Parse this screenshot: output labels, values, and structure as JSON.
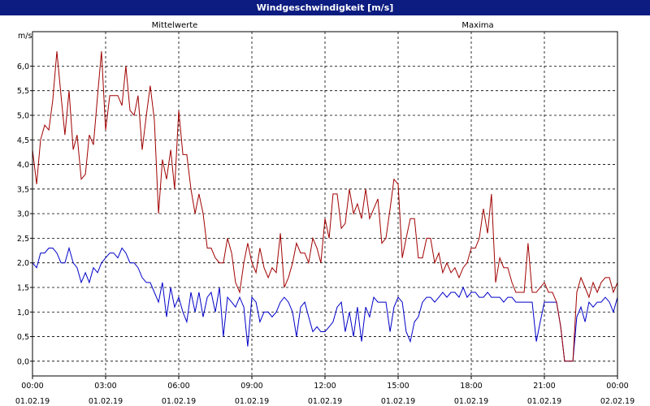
{
  "window": {
    "title": "Windgeschwindigkeit [m/s]"
  },
  "chart_data": {
    "type": "line",
    "title": "Windgeschwindigkeit [m/s]",
    "ylabel": "m/s",
    "ylim": [
      -0.3,
      6.7
    ],
    "yticks": [
      "0,0",
      "0,5",
      "1,0",
      "1,5",
      "2,0",
      "2,5",
      "3,0",
      "3,5",
      "4,0",
      "4,5",
      "5,0",
      "5,5",
      "6,0"
    ],
    "xlim_hours": [
      0,
      24
    ],
    "xticks": [
      {
        "time": "00:00",
        "date": "01.02.19"
      },
      {
        "time": "03:00",
        "date": "01.02.19"
      },
      {
        "time": "06:00",
        "date": "01.02.19"
      },
      {
        "time": "09:00",
        "date": "01.02.19"
      },
      {
        "time": "12:00",
        "date": "01.02.19"
      },
      {
        "time": "15:00",
        "date": "01.02.19"
      },
      {
        "time": "18:00",
        "date": "01.02.19"
      },
      {
        "time": "21:00",
        "date": "01.02.19"
      },
      {
        "time": "00:00",
        "date": "02.02.19"
      }
    ],
    "grid": true,
    "legend": "top",
    "series": [
      {
        "name": "Mittelwerte",
        "color": "#0000c8",
        "values": [
          [
            0.0,
            2.0
          ],
          [
            0.17,
            1.9
          ],
          [
            0.33,
            2.2
          ],
          [
            0.5,
            2.2
          ],
          [
            0.67,
            2.3
          ],
          [
            0.83,
            2.3
          ],
          [
            1.0,
            2.2
          ],
          [
            1.17,
            2.0
          ],
          [
            1.33,
            2.0
          ],
          [
            1.5,
            2.3
          ],
          [
            1.67,
            2.0
          ],
          [
            1.83,
            1.9
          ],
          [
            2.0,
            1.6
          ],
          [
            2.17,
            1.8
          ],
          [
            2.33,
            1.6
          ],
          [
            2.5,
            1.9
          ],
          [
            2.67,
            1.8
          ],
          [
            2.83,
            2.0
          ],
          [
            3.0,
            2.1
          ],
          [
            3.17,
            2.2
          ],
          [
            3.33,
            2.2
          ],
          [
            3.5,
            2.1
          ],
          [
            3.67,
            2.3
          ],
          [
            3.83,
            2.2
          ],
          [
            4.0,
            2.0
          ],
          [
            4.17,
            2.0
          ],
          [
            4.33,
            1.9
          ],
          [
            4.5,
            1.7
          ],
          [
            4.67,
            1.6
          ],
          [
            4.83,
            1.6
          ],
          [
            5.0,
            1.4
          ],
          [
            5.17,
            1.2
          ],
          [
            5.33,
            1.6
          ],
          [
            5.5,
            0.9
          ],
          [
            5.67,
            1.5
          ],
          [
            5.83,
            1.1
          ],
          [
            6.0,
            1.3
          ],
          [
            6.17,
            1.0
          ],
          [
            6.33,
            0.8
          ],
          [
            6.5,
            1.4
          ],
          [
            6.67,
            1.0
          ],
          [
            6.83,
            1.4
          ],
          [
            7.0,
            0.9
          ],
          [
            7.17,
            1.3
          ],
          [
            7.33,
            1.4
          ],
          [
            7.5,
            1.0
          ],
          [
            7.67,
            1.5
          ],
          [
            7.83,
            0.5
          ],
          [
            8.0,
            1.3
          ],
          [
            8.17,
            1.2
          ],
          [
            8.33,
            1.1
          ],
          [
            8.5,
            1.3
          ],
          [
            8.67,
            1.1
          ],
          [
            8.83,
            0.3
          ],
          [
            9.0,
            1.3
          ],
          [
            9.17,
            1.2
          ],
          [
            9.33,
            0.8
          ],
          [
            9.5,
            1.0
          ],
          [
            9.67,
            1.0
          ],
          [
            9.83,
            0.9
          ],
          [
            10.0,
            1.0
          ],
          [
            10.17,
            1.2
          ],
          [
            10.33,
            1.3
          ],
          [
            10.5,
            1.2
          ],
          [
            10.67,
            1.0
          ],
          [
            10.83,
            0.5
          ],
          [
            11.0,
            1.1
          ],
          [
            11.17,
            1.2
          ],
          [
            11.33,
            0.9
          ],
          [
            11.5,
            0.6
          ],
          [
            11.67,
            0.7
          ],
          [
            11.83,
            0.6
          ],
          [
            12.0,
            0.6
          ],
          [
            12.17,
            0.7
          ],
          [
            12.33,
            0.8
          ],
          [
            12.5,
            1.1
          ],
          [
            12.67,
            1.2
          ],
          [
            12.83,
            0.6
          ],
          [
            13.0,
            1.0
          ],
          [
            13.17,
            0.5
          ],
          [
            13.33,
            1.1
          ],
          [
            13.5,
            0.4
          ],
          [
            13.67,
            1.1
          ],
          [
            13.83,
            0.9
          ],
          [
            14.0,
            1.3
          ],
          [
            14.17,
            1.2
          ],
          [
            14.33,
            1.2
          ],
          [
            14.5,
            1.2
          ],
          [
            14.67,
            0.6
          ],
          [
            14.83,
            1.1
          ],
          [
            15.0,
            1.3
          ],
          [
            15.17,
            1.2
          ],
          [
            15.33,
            0.6
          ],
          [
            15.5,
            0.4
          ],
          [
            15.67,
            0.8
          ],
          [
            15.83,
            0.9
          ],
          [
            16.0,
            1.2
          ],
          [
            16.17,
            1.3
          ],
          [
            16.33,
            1.3
          ],
          [
            16.5,
            1.2
          ],
          [
            16.67,
            1.3
          ],
          [
            16.83,
            1.4
          ],
          [
            17.0,
            1.3
          ],
          [
            17.17,
            1.4
          ],
          [
            17.33,
            1.4
          ],
          [
            17.5,
            1.3
          ],
          [
            17.67,
            1.5
          ],
          [
            17.83,
            1.3
          ],
          [
            18.0,
            1.4
          ],
          [
            18.17,
            1.4
          ],
          [
            18.33,
            1.3
          ],
          [
            18.5,
            1.3
          ],
          [
            18.67,
            1.4
          ],
          [
            18.83,
            1.3
          ],
          [
            19.0,
            1.3
          ],
          [
            19.17,
            1.3
          ],
          [
            19.33,
            1.2
          ],
          [
            19.5,
            1.3
          ],
          [
            19.67,
            1.3
          ],
          [
            19.83,
            1.2
          ],
          [
            20.0,
            1.2
          ],
          [
            20.17,
            1.2
          ],
          [
            20.33,
            1.2
          ],
          [
            20.5,
            1.2
          ],
          [
            20.67,
            0.4
          ],
          [
            20.83,
            0.8
          ],
          [
            21.0,
            1.2
          ],
          [
            21.17,
            1.2
          ],
          [
            21.33,
            1.2
          ],
          [
            21.5,
            1.2
          ],
          [
            21.67,
            0.7
          ],
          [
            21.83,
            0.0
          ],
          [
            22.0,
            0.0
          ],
          [
            22.17,
            0.0
          ],
          [
            22.33,
            0.9
          ],
          [
            22.5,
            1.1
          ],
          [
            22.67,
            0.8
          ],
          [
            22.83,
            1.2
          ],
          [
            23.0,
            1.1
          ],
          [
            23.17,
            1.2
          ],
          [
            23.33,
            1.2
          ],
          [
            23.5,
            1.3
          ],
          [
            23.67,
            1.2
          ],
          [
            23.83,
            1.0
          ],
          [
            24.0,
            1.3
          ]
        ]
      },
      {
        "name": "Maxima",
        "color": "#a00000",
        "values": [
          [
            0.0,
            4.3
          ],
          [
            0.17,
            3.6
          ],
          [
            0.33,
            4.5
          ],
          [
            0.5,
            4.8
          ],
          [
            0.67,
            4.7
          ],
          [
            0.83,
            5.3
          ],
          [
            1.0,
            6.3
          ],
          [
            1.17,
            5.4
          ],
          [
            1.33,
            4.6
          ],
          [
            1.5,
            5.5
          ],
          [
            1.67,
            4.3
          ],
          [
            1.83,
            4.6
          ],
          [
            2.0,
            3.7
          ],
          [
            2.17,
            3.8
          ],
          [
            2.33,
            4.6
          ],
          [
            2.5,
            4.4
          ],
          [
            2.67,
            5.4
          ],
          [
            2.83,
            6.3
          ],
          [
            3.0,
            4.7
          ],
          [
            3.17,
            5.4
          ],
          [
            3.33,
            5.4
          ],
          [
            3.5,
            5.4
          ],
          [
            3.67,
            5.2
          ],
          [
            3.83,
            6.0
          ],
          [
            4.0,
            5.1
          ],
          [
            4.17,
            5.0
          ],
          [
            4.33,
            5.4
          ],
          [
            4.5,
            4.3
          ],
          [
            4.67,
            5.0
          ],
          [
            4.83,
            5.6
          ],
          [
            5.0,
            4.9
          ],
          [
            5.17,
            3.0
          ],
          [
            5.33,
            4.1
          ],
          [
            5.5,
            3.7
          ],
          [
            5.67,
            4.3
          ],
          [
            5.83,
            3.5
          ],
          [
            6.0,
            5.1
          ],
          [
            6.17,
            4.2
          ],
          [
            6.33,
            4.2
          ],
          [
            6.5,
            3.5
          ],
          [
            6.67,
            3.0
          ],
          [
            6.83,
            3.4
          ],
          [
            7.0,
            3.0
          ],
          [
            7.17,
            2.3
          ],
          [
            7.33,
            2.3
          ],
          [
            7.5,
            2.1
          ],
          [
            7.67,
            2.0
          ],
          [
            7.83,
            2.0
          ],
          [
            8.0,
            2.5
          ],
          [
            8.17,
            2.2
          ],
          [
            8.33,
            1.6
          ],
          [
            8.5,
            1.4
          ],
          [
            8.67,
            2.0
          ],
          [
            8.83,
            2.4
          ],
          [
            9.0,
            2.0
          ],
          [
            9.17,
            1.8
          ],
          [
            9.33,
            2.3
          ],
          [
            9.5,
            1.9
          ],
          [
            9.67,
            1.7
          ],
          [
            9.83,
            1.9
          ],
          [
            10.0,
            1.8
          ],
          [
            10.17,
            2.6
          ],
          [
            10.33,
            1.5
          ],
          [
            10.5,
            1.7
          ],
          [
            10.67,
            2.0
          ],
          [
            10.83,
            2.4
          ],
          [
            11.0,
            2.2
          ],
          [
            11.17,
            2.2
          ],
          [
            11.33,
            2.0
          ],
          [
            11.5,
            2.5
          ],
          [
            11.67,
            2.3
          ],
          [
            11.83,
            2.0
          ],
          [
            12.0,
            2.9
          ],
          [
            12.17,
            2.5
          ],
          [
            12.33,
            3.4
          ],
          [
            12.5,
            3.4
          ],
          [
            12.67,
            2.7
          ],
          [
            12.83,
            2.8
          ],
          [
            13.0,
            3.5
          ],
          [
            13.17,
            3.0
          ],
          [
            13.33,
            3.2
          ],
          [
            13.5,
            2.9
          ],
          [
            13.67,
            3.5
          ],
          [
            13.83,
            2.9
          ],
          [
            14.0,
            3.1
          ],
          [
            14.17,
            3.3
          ],
          [
            14.33,
            2.4
          ],
          [
            14.5,
            2.5
          ],
          [
            14.67,
            3.1
          ],
          [
            14.83,
            3.7
          ],
          [
            15.0,
            3.6
          ],
          [
            15.17,
            2.1
          ],
          [
            15.33,
            2.5
          ],
          [
            15.5,
            2.9
          ],
          [
            15.67,
            2.9
          ],
          [
            15.83,
            2.1
          ],
          [
            16.0,
            2.1
          ],
          [
            16.17,
            2.5
          ],
          [
            16.33,
            2.5
          ],
          [
            16.5,
            2.0
          ],
          [
            16.67,
            2.2
          ],
          [
            16.83,
            1.8
          ],
          [
            17.0,
            2.0
          ],
          [
            17.17,
            1.8
          ],
          [
            17.33,
            1.9
          ],
          [
            17.5,
            1.7
          ],
          [
            17.67,
            1.9
          ],
          [
            17.83,
            2.0
          ],
          [
            18.0,
            2.3
          ],
          [
            18.17,
            2.3
          ],
          [
            18.33,
            2.5
          ],
          [
            18.5,
            3.1
          ],
          [
            18.67,
            2.6
          ],
          [
            18.83,
            3.4
          ],
          [
            19.0,
            1.6
          ],
          [
            19.17,
            2.1
          ],
          [
            19.33,
            1.9
          ],
          [
            19.5,
            1.9
          ],
          [
            19.67,
            1.6
          ],
          [
            19.83,
            1.4
          ],
          [
            20.0,
            1.4
          ],
          [
            20.17,
            1.4
          ],
          [
            20.33,
            2.4
          ],
          [
            20.5,
            1.4
          ],
          [
            20.67,
            1.4
          ],
          [
            20.83,
            1.5
          ],
          [
            21.0,
            1.6
          ],
          [
            21.17,
            1.4
          ],
          [
            21.33,
            1.4
          ],
          [
            21.5,
            1.2
          ],
          [
            21.67,
            0.7
          ],
          [
            21.83,
            0.0
          ],
          [
            22.0,
            0.0
          ],
          [
            22.17,
            0.0
          ],
          [
            22.33,
            1.4
          ],
          [
            22.5,
            1.7
          ],
          [
            22.67,
            1.5
          ],
          [
            22.83,
            1.3
          ],
          [
            23.0,
            1.6
          ],
          [
            23.17,
            1.4
          ],
          [
            23.33,
            1.6
          ],
          [
            23.5,
            1.7
          ],
          [
            23.67,
            1.7
          ],
          [
            23.83,
            1.4
          ],
          [
            24.0,
            1.6
          ]
        ]
      }
    ]
  }
}
